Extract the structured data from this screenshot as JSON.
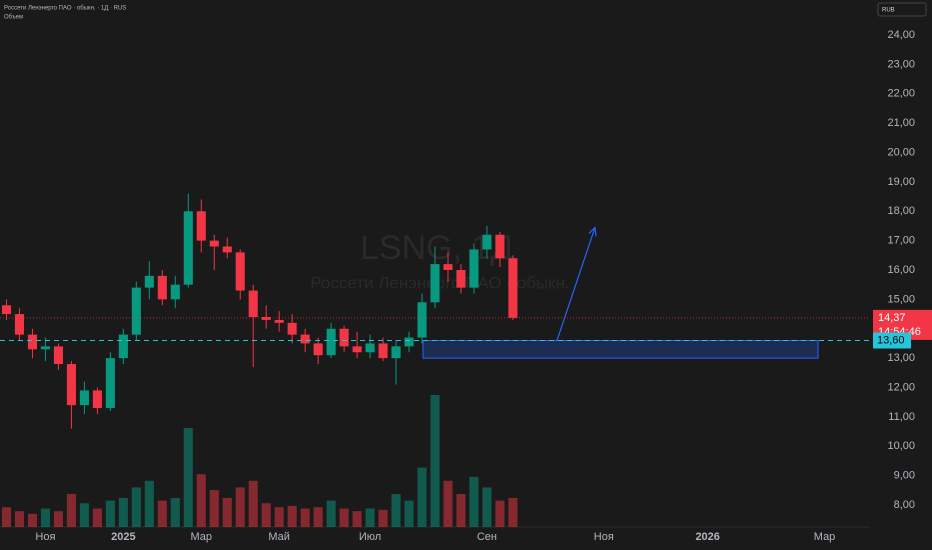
{
  "header": {
    "symbol_line": "Россети Ленэнерго ПАО · обыкн. · 1Д · RUS",
    "pane_label": "Объем",
    "currency": "RUB"
  },
  "chart_data": {
    "type": "candlestick",
    "watermark": "LSNG, 1Д",
    "watermark_subtitle": "Россети Ленэнерго ПАО - обыкн.",
    "up_color": "#089981",
    "down_color": "#f23645",
    "categories": [
      null,
      null,
      null,
      "Ноя",
      null,
      null,
      null,
      null,
      null,
      "2025",
      null,
      null,
      null,
      null,
      null,
      "Мар",
      null,
      null,
      null,
      null,
      null,
      "Май",
      null,
      null,
      null,
      null,
      null,
      null,
      "Июл",
      null,
      null,
      null,
      null,
      null,
      null,
      null,
      null,
      "Сен",
      null,
      null,
      null,
      null,
      null,
      null,
      null,
      null,
      "Ноя",
      null,
      null,
      null,
      null,
      null,
      null,
      null,
      "2026",
      null,
      null,
      null,
      null,
      null,
      null,
      null,
      null,
      "Мар",
      null,
      null,
      null
    ],
    "open": [
      14.8,
      14.5,
      13.8,
      13.3,
      13.4,
      12.8,
      11.4,
      11.9,
      11.3,
      13.0,
      13.8,
      15.4,
      15.8,
      15.0,
      15.5,
      18.0,
      17.0,
      16.8,
      16.6,
      15.3,
      14.4,
      14.3,
      14.2,
      13.8,
      13.5,
      13.1,
      14.0,
      13.4,
      13.2,
      13.5,
      13.0,
      13.4,
      13.7,
      14.9,
      16.2,
      16.0,
      15.4,
      16.7,
      17.2,
      16.4,
      null,
      null,
      null,
      null,
      null,
      null,
      null,
      null,
      null,
      null,
      null,
      null,
      null,
      null,
      null,
      null,
      null,
      null,
      null,
      null,
      null,
      null,
      null,
      null,
      null,
      null,
      null
    ],
    "high": [
      15.0,
      14.7,
      14.0,
      13.7,
      13.5,
      12.9,
      12.2,
      12.0,
      13.2,
      14.0,
      15.6,
      16.3,
      16.0,
      15.8,
      18.6,
      18.4,
      17.2,
      17.1,
      16.7,
      15.5,
      14.8,
      14.6,
      14.5,
      14.0,
      13.7,
      14.2,
      14.1,
      13.9,
      13.8,
      13.7,
      13.6,
      13.9,
      15.2,
      16.8,
      16.6,
      16.2,
      16.9,
      17.5,
      17.3,
      16.5,
      null,
      null,
      null,
      null,
      null,
      null,
      null,
      null,
      null,
      null,
      null,
      null,
      null,
      null,
      null,
      null,
      null,
      null,
      null,
      null,
      null,
      null,
      null,
      null,
      null,
      null,
      null
    ],
    "low": [
      14.3,
      13.6,
      13.0,
      12.9,
      12.6,
      10.6,
      11.1,
      11.1,
      11.2,
      12.8,
      13.6,
      15.0,
      14.8,
      14.7,
      15.4,
      16.6,
      16.0,
      16.4,
      15.0,
      12.7,
      14.0,
      13.9,
      13.5,
      13.2,
      12.8,
      13.0,
      13.2,
      13.0,
      13.0,
      12.9,
      12.1,
      13.2,
      13.5,
      14.7,
      15.6,
      15.2,
      15.2,
      16.4,
      16.1,
      14.3,
      null,
      null,
      null,
      null,
      null,
      null,
      null,
      null,
      null,
      null,
      null,
      null,
      null,
      null,
      null,
      null,
      null,
      null,
      null,
      null,
      null,
      null,
      null,
      null,
      null,
      null,
      null
    ],
    "close": [
      14.5,
      13.8,
      13.3,
      13.4,
      12.8,
      11.4,
      11.9,
      11.3,
      13.0,
      13.8,
      15.4,
      15.8,
      15.0,
      15.5,
      18.0,
      17.0,
      16.8,
      16.6,
      15.3,
      14.4,
      14.3,
      14.2,
      13.8,
      13.5,
      13.1,
      14.0,
      13.4,
      13.2,
      13.5,
      13.0,
      13.4,
      13.7,
      14.9,
      16.2,
      16.0,
      15.4,
      16.7,
      17.2,
      16.4,
      14.37,
      null,
      null,
      null,
      null,
      null,
      null,
      null,
      null,
      null,
      null,
      null,
      null,
      null,
      null,
      null,
      null,
      null,
      null,
      null,
      null,
      null,
      null,
      null,
      null,
      null,
      null,
      null
    ],
    "volume": [
      15,
      12,
      10,
      14,
      12,
      25,
      18,
      14,
      20,
      22,
      30,
      35,
      20,
      22,
      75,
      40,
      28,
      22,
      30,
      35,
      18,
      15,
      16,
      14,
      15,
      20,
      14,
      12,
      14,
      13,
      25,
      20,
      45,
      100,
      35,
      25,
      38,
      30,
      20,
      22,
      null,
      null,
      null,
      null,
      null,
      null,
      null,
      null,
      null,
      null,
      null,
      null,
      null,
      null,
      null,
      null,
      null,
      null,
      null,
      null,
      null,
      null,
      null,
      null,
      null,
      null,
      null
    ],
    "ylim": [
      8,
      24
    ],
    "yticks": [
      {
        "value": 8,
        "label": "8,00"
      },
      {
        "value": 9,
        "label": "9,00"
      },
      {
        "value": 10,
        "label": "10,00"
      },
      {
        "value": 11,
        "label": "11,00"
      },
      {
        "value": 12,
        "label": "12,00"
      },
      {
        "value": 13,
        "label": "13,00"
      },
      {
        "value": 14,
        "label": "14,00"
      },
      {
        "value": 15,
        "label": "15,00"
      },
      {
        "value": 16,
        "label": "16,00"
      },
      {
        "value": 17,
        "label": "17,00"
      },
      {
        "value": 18,
        "label": "18,00"
      },
      {
        "value": 19,
        "label": "19,00"
      },
      {
        "value": 20,
        "label": "20,00"
      },
      {
        "value": 21,
        "label": "21,00"
      },
      {
        "value": 22,
        "label": "22,00"
      },
      {
        "value": 23,
        "label": "23,00"
      },
      {
        "value": 24,
        "label": "24,00"
      }
    ],
    "y2lim": [
      0,
      100
    ],
    "last_price": {
      "value": 14.37,
      "label": "14,37"
    },
    "countdown": "14:54:46",
    "hline": {
      "value": 13.6,
      "label": "13,60"
    },
    "zone": [
      13.0,
      13.6
    ],
    "arrow": [
      13.6,
      17.45
    ]
  }
}
